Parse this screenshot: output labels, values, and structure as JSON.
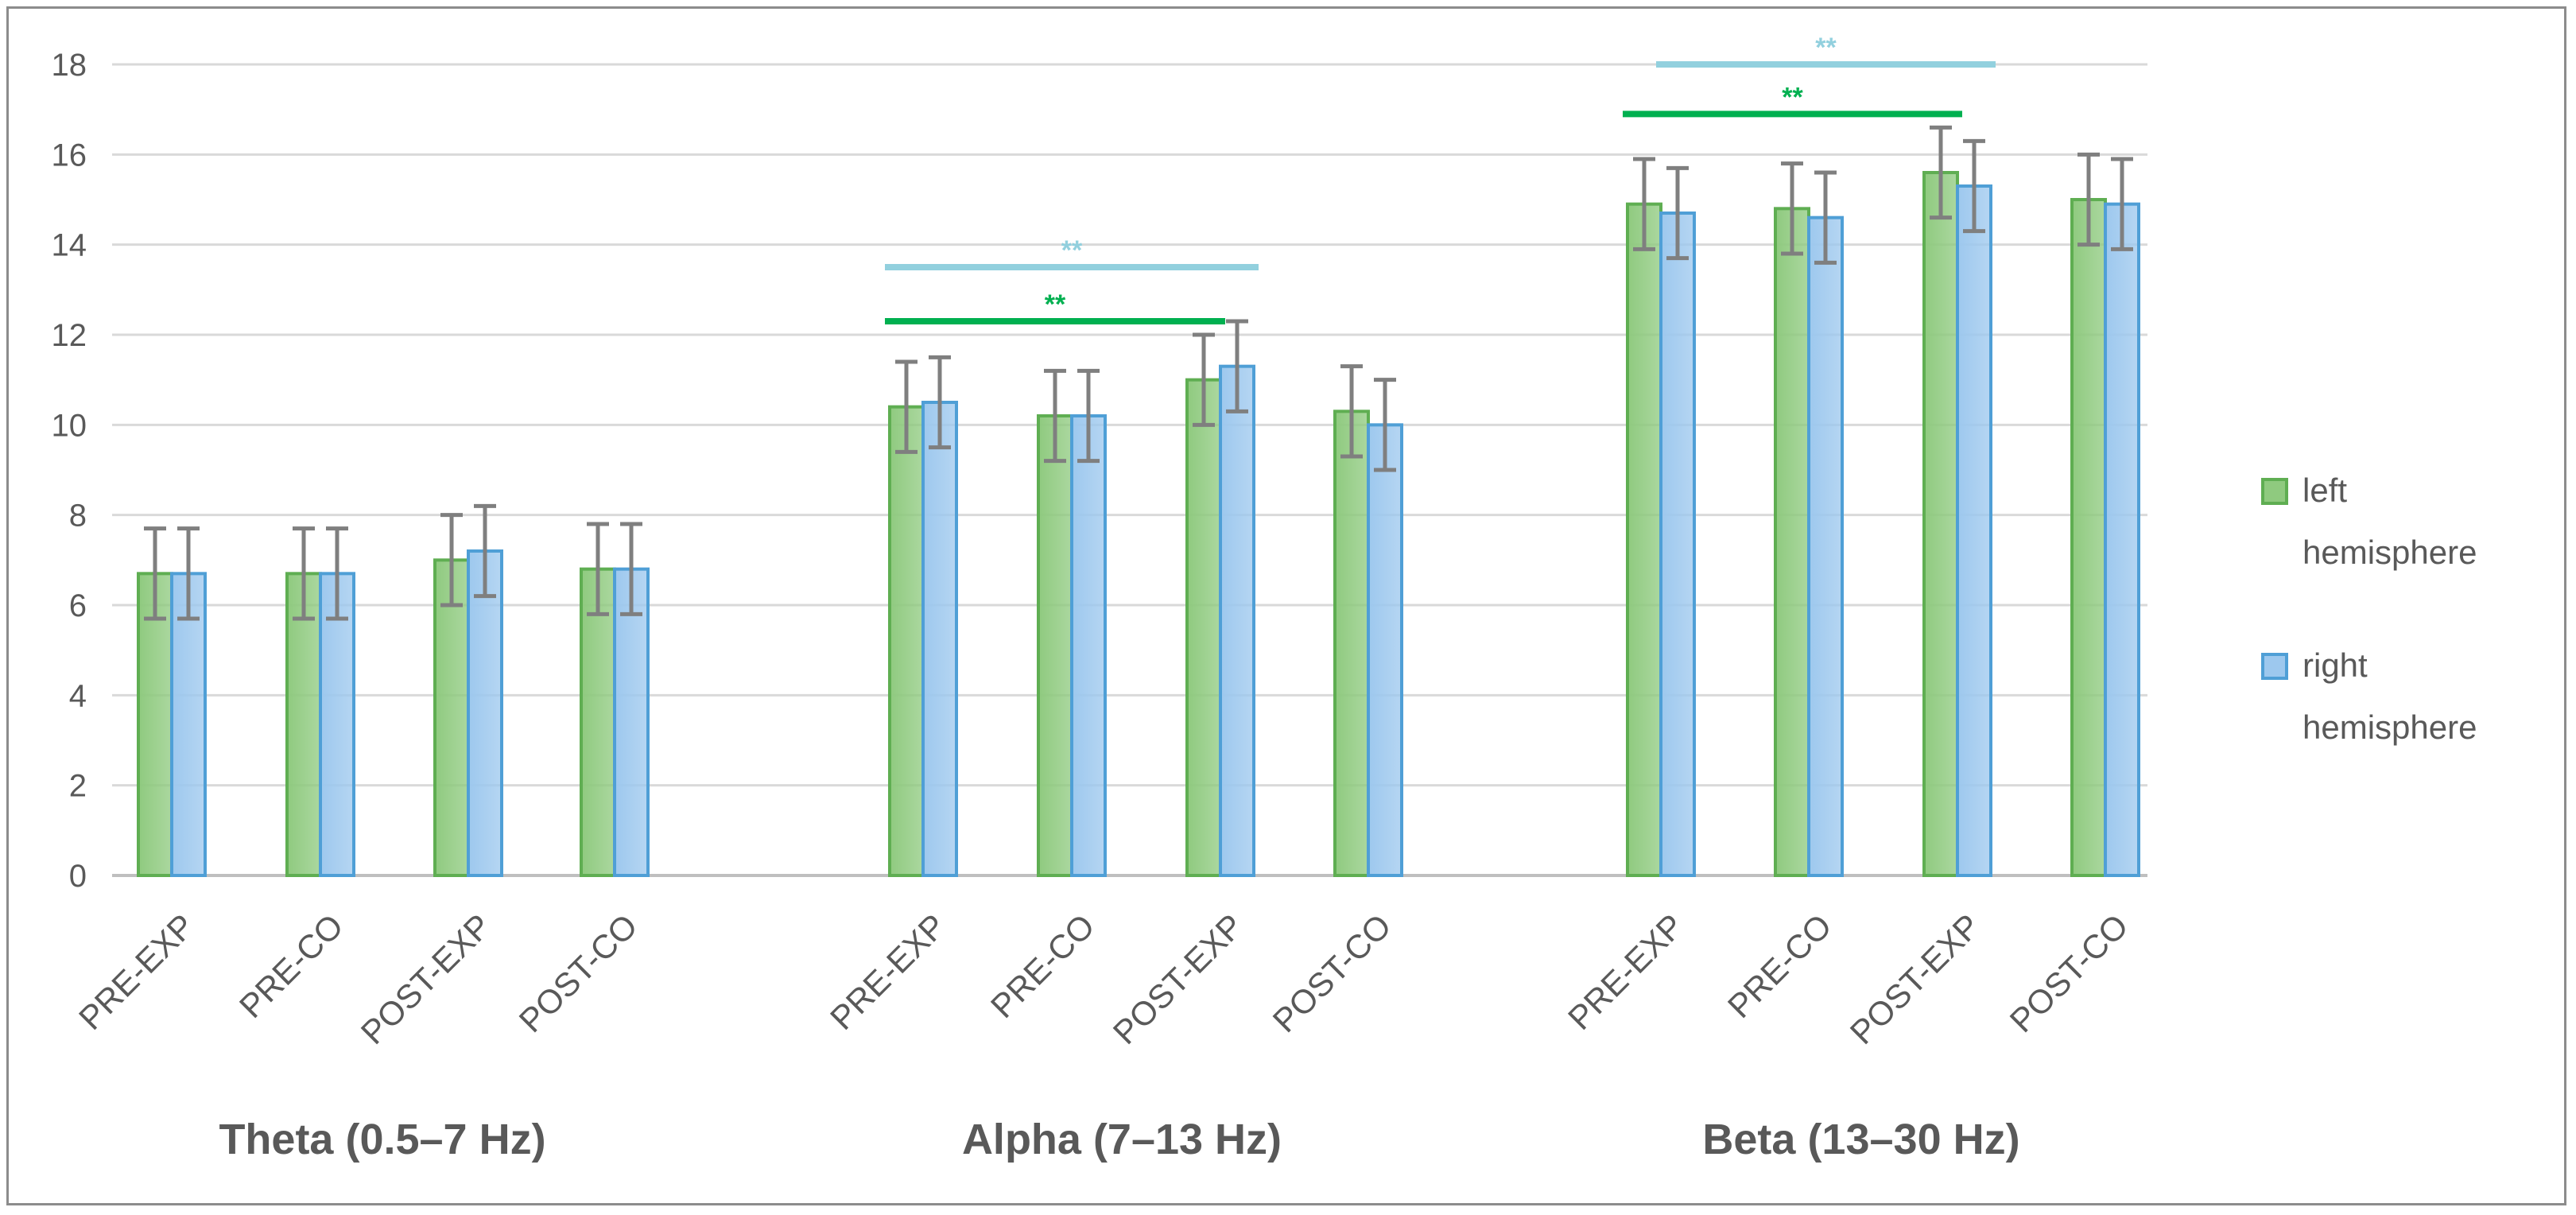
{
  "chart_data": {
    "type": "bar",
    "title": "",
    "ylabel": "",
    "xlabel": "",
    "ylim": [
      0,
      18
    ],
    "yticks": [
      0,
      2,
      4,
      6,
      8,
      10,
      12,
      14,
      16,
      18
    ],
    "grid": true,
    "legend_position": "right",
    "groups": [
      {
        "label": "Theta (0.5–7 Hz)",
        "categories": [
          "PRE-EXP",
          "PRE-CO",
          "POST-EXP",
          "POST-CO"
        ]
      },
      {
        "label": "Alpha (7–13 Hz)",
        "categories": [
          "PRE-EXP",
          "PRE-CO",
          "POST-EXP",
          "POST-CO"
        ]
      },
      {
        "label": "Beta (13–30 Hz)",
        "categories": [
          "PRE-EXP",
          "PRE-CO",
          "POST-EXP",
          "POST-CO"
        ]
      }
    ],
    "series": [
      {
        "name": "left hemisphere",
        "legend_lines": [
          "left",
          "hemisphere"
        ],
        "color": "#8fca7f",
        "edge_color": "#5fae52",
        "values": [
          6.7,
          6.7,
          7.0,
          6.8,
          10.4,
          10.2,
          11.0,
          10.3,
          14.9,
          14.8,
          15.6,
          15.0
        ],
        "error": [
          1.0,
          1.0,
          1.0,
          1.0,
          1.0,
          1.0,
          1.0,
          1.0,
          1.0,
          1.0,
          1.0,
          1.0
        ]
      },
      {
        "name": "right hemisphere",
        "legend_lines": [
          "right",
          "hemisphere"
        ],
        "color": "#9dc8ee",
        "edge_color": "#4f9fd6",
        "values": [
          6.7,
          6.7,
          7.2,
          6.8,
          10.5,
          10.2,
          11.3,
          10.0,
          14.7,
          14.6,
          15.3,
          14.9
        ],
        "error": [
          1.0,
          1.0,
          1.0,
          1.0,
          1.0,
          1.0,
          1.0,
          1.0,
          1.0,
          1.0,
          1.0,
          1.0
        ]
      }
    ],
    "significance": [
      {
        "label": "**",
        "y": 12.3,
        "from_index": 4,
        "to_index": 6,
        "from_series": 0,
        "to_series": 0,
        "color": "#00b050"
      },
      {
        "label": "**",
        "y": 13.5,
        "from_index": 4,
        "to_index": 6,
        "from_series": 0,
        "to_series": 1,
        "color": "#92d0de"
      },
      {
        "label": "**",
        "y": 16.9,
        "from_index": 8,
        "to_index": 10,
        "from_series": 0,
        "to_series": 0,
        "color": "#00b050"
      },
      {
        "label": "**",
        "y": 18.0,
        "from_index": 8,
        "to_index": 10,
        "from_series": 1,
        "to_series": 1,
        "color": "#92d0de"
      }
    ]
  }
}
